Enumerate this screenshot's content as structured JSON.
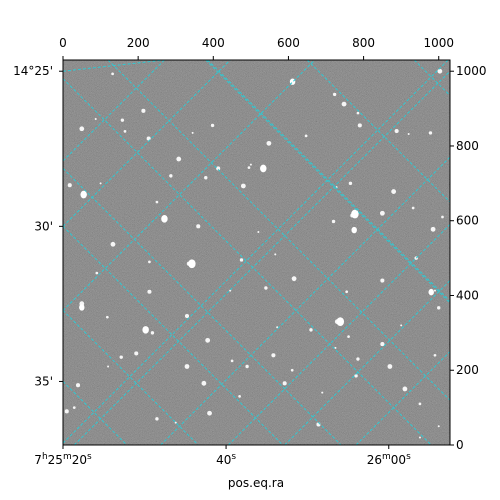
{
  "chart_data": {
    "type": "scatter",
    "xlabel": "pos.eq.ra",
    "ylabel": "",
    "pixel_axis": {
      "x_ticks": [
        0,
        200,
        400,
        600,
        800,
        1000
      ],
      "x_labels": [
        "0",
        "200",
        "400",
        "600",
        "800",
        "1000"
      ],
      "y_ticks": [
        0,
        200,
        400,
        600,
        800,
        1000
      ],
      "y_labels": [
        "0",
        "200",
        "400",
        "600",
        "800",
        "1000"
      ],
      "xlim": [
        0,
        1030
      ],
      "ylim": [
        0,
        1030
      ]
    },
    "world_axis": {
      "ra_labels": [
        {
          "x": 0,
          "text": "7h25m20s"
        },
        {
          "x": 434,
          "text": "40s"
        },
        {
          "x": 867,
          "text": "26m00s"
        }
      ],
      "dec_labels": [
        {
          "y": 1000,
          "text": "14°25'"
        },
        {
          "y": 585,
          "text": "30'"
        },
        {
          "y": 170,
          "text": "35'"
        }
      ]
    },
    "ra_grid_lines": [
      [
        [
          0,
          1000
        ],
        [
          270,
          1030
        ]
      ],
      [
        [
          0,
          760
        ],
        [
          270,
          1030
        ]
      ],
      [
        [
          0,
          585
        ],
        [
          585,
          0
        ]
      ],
      [
        [
          0,
          360
        ],
        [
          360,
          0
        ]
      ],
      [
        [
          0,
          170
        ],
        [
          170,
          0
        ]
      ],
      [
        [
          120,
          1030
        ],
        [
          1030,
          120
        ]
      ],
      [
        [
          380,
          1030
        ],
        [
          1030,
          380
        ]
      ],
      [
        [
          650,
          1030
        ],
        [
          1030,
          650
        ]
      ],
      [
        [
          935,
          1030
        ],
        [
          1030,
          935
        ]
      ],
      [
        [
          440,
          0
        ],
        [
          1030,
          590
        ]
      ]
    ],
    "dec_grid_lines": [
      [
        [
          0,
          980
        ],
        [
          980,
          0
        ]
      ],
      [
        [
          0,
          740
        ],
        [
          740,
          0
        ]
      ],
      [
        [
          385,
          1030
        ],
        [
          1030,
          385
        ]
      ],
      [
        [
          0,
          360
        ],
        [
          670,
          1030
        ]
      ],
      [
        [
          0,
          585
        ],
        [
          445,
          1030
        ]
      ],
      [
        [
          30,
          0
        ],
        [
          1030,
          1000
        ]
      ],
      [
        [
          260,
          0
        ],
        [
          1030,
          770
        ]
      ],
      [
        [
          590,
          0
        ],
        [
          1030,
          440
        ]
      ],
      [
        [
          780,
          0
        ],
        [
          1030,
          250
        ]
      ],
      [
        [
          0,
          5
        ],
        [
          1025,
          1030
        ]
      ]
    ],
    "grid_color": "#2fc9d3",
    "background_color": "#6e6e6e",
    "stars": [
      [
        609,
        972
      ],
      [
        723,
        938
      ],
      [
        748,
        912
      ],
      [
        785,
        888
      ],
      [
        888,
        840
      ],
      [
        920,
        832
      ],
      [
        978,
        835
      ],
      [
        1003,
        1000
      ],
      [
        132,
        993
      ],
      [
        214,
        894
      ],
      [
        87,
        872
      ],
      [
        158,
        869
      ],
      [
        50,
        846
      ],
      [
        165,
        839
      ],
      [
        228,
        820
      ],
      [
        345,
        835
      ],
      [
        398,
        855
      ],
      [
        548,
        807
      ],
      [
        647,
        827
      ],
      [
        790,
        855
      ],
      [
        500,
        750
      ],
      [
        287,
        720
      ],
      [
        308,
        765
      ],
      [
        495,
        742
      ],
      [
        18,
        695
      ],
      [
        100,
        700
      ],
      [
        380,
        715
      ],
      [
        480,
        693
      ],
      [
        250,
        650
      ],
      [
        413,
        740
      ],
      [
        728,
        690
      ],
      [
        765,
        700
      ],
      [
        880,
        678
      ],
      [
        932,
        634
      ],
      [
        770,
        614
      ],
      [
        773,
        573
      ],
      [
        720,
        598
      ],
      [
        850,
        620
      ],
      [
        1010,
        610
      ],
      [
        360,
        585
      ],
      [
        520,
        570
      ],
      [
        475,
        495
      ],
      [
        133,
        537
      ],
      [
        230,
        490
      ],
      [
        335,
        485
      ],
      [
        565,
        510
      ],
      [
        940,
        500
      ],
      [
        985,
        577
      ],
      [
        90,
        460
      ],
      [
        230,
        410
      ],
      [
        445,
        413
      ],
      [
        540,
        420
      ],
      [
        615,
        445
      ],
      [
        755,
        410
      ],
      [
        850,
        440
      ],
      [
        990,
        413
      ],
      [
        1000,
        367
      ],
      [
        50,
        378
      ],
      [
        118,
        342
      ],
      [
        330,
        345
      ],
      [
        570,
        315
      ],
      [
        660,
        308
      ],
      [
        730,
        330
      ],
      [
        760,
        290
      ],
      [
        850,
        270
      ],
      [
        900,
        320
      ],
      [
        238,
        300
      ],
      [
        385,
        280
      ],
      [
        450,
        225
      ],
      [
        560,
        240
      ],
      [
        725,
        260
      ],
      [
        785,
        230
      ],
      [
        870,
        210
      ],
      [
        990,
        240
      ],
      [
        195,
        245
      ],
      [
        120,
        210
      ],
      [
        155,
        235
      ],
      [
        375,
        165
      ],
      [
        470,
        130
      ],
      [
        590,
        165
      ],
      [
        690,
        140
      ],
      [
        780,
        185
      ],
      [
        910,
        150
      ],
      [
        950,
        110
      ],
      [
        680,
        55
      ],
      [
        950,
        20
      ],
      [
        250,
        70
      ],
      [
        390,
        85
      ],
      [
        30,
        100
      ],
      [
        10,
        90
      ],
      [
        1000,
        50
      ],
      [
        490,
        210
      ],
      [
        330,
        210
      ],
      [
        610,
        200
      ],
      [
        40,
        160
      ],
      [
        300,
        60
      ]
    ],
    "bright_stars": [
      [
        611,
        972
      ],
      [
        533,
        740
      ],
      [
        777,
        618
      ],
      [
        775,
        575
      ],
      [
        270,
        605
      ],
      [
        343,
        485
      ],
      [
        50,
        368
      ],
      [
        220,
        308
      ],
      [
        738,
        330
      ],
      [
        980,
        409
      ],
      [
        55,
        670
      ]
    ]
  }
}
